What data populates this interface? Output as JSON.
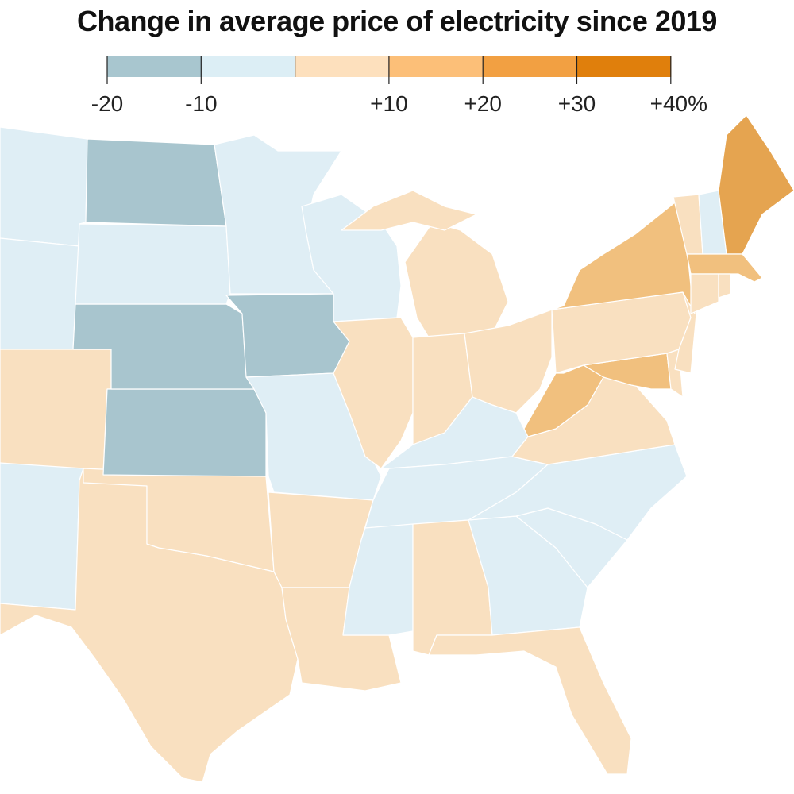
{
  "title": "Change in average price of electricity since 2019",
  "legend": {
    "bins": [
      {
        "from": -20,
        "to": -10,
        "color": "#a8c6cf"
      },
      {
        "from": -10,
        "to": 0,
        "color": "#dcEEf5"
      },
      {
        "from": 0,
        "to": 10,
        "color": "#fde0bd"
      },
      {
        "from": 10,
        "to": 20,
        "color": "#fcbf78"
      },
      {
        "from": 20,
        "to": 30,
        "color": "#f2a042"
      },
      {
        "from": 30,
        "to": 40,
        "color": "#e07f0c"
      }
    ],
    "tick_labels": [
      "-20",
      "-10",
      "+10",
      "+20",
      "+30",
      "+40%"
    ]
  },
  "map_colors": {
    "-20": "#a8c5ce",
    "-10": "#dfeef5",
    "0": "#f9e0c0",
    "10": "#f1c07e",
    "20": "#e5a450",
    "30": "#d9850f"
  },
  "state_bins": {
    "MT": -10,
    "WY": -10,
    "CO": 0,
    "NM": -10,
    "TX": 0,
    "OK": 0,
    "KS": -20,
    "NE": -20,
    "ND": -20,
    "SD": -10,
    "MN": -10,
    "IA": -20,
    "MO": -10,
    "AR": 0,
    "LA": 0,
    "WI": -10,
    "IL": 0,
    "MI": 0,
    "MIU": 0,
    "IN": 0,
    "OH": 0,
    "KY": -10,
    "TN": -10,
    "MS": -10,
    "AL": 0,
    "GA": -10,
    "FL": 0,
    "SC": -10,
    "NC": -10,
    "VA": 0,
    "WV": 10,
    "MD": 10,
    "DE": 0,
    "PA": 0,
    "NJ": 0,
    "NY": 10,
    "VT": 0,
    "NH": -10,
    "ME": 20,
    "MA": 10,
    "CT": 0,
    "RI": 0
  }
}
